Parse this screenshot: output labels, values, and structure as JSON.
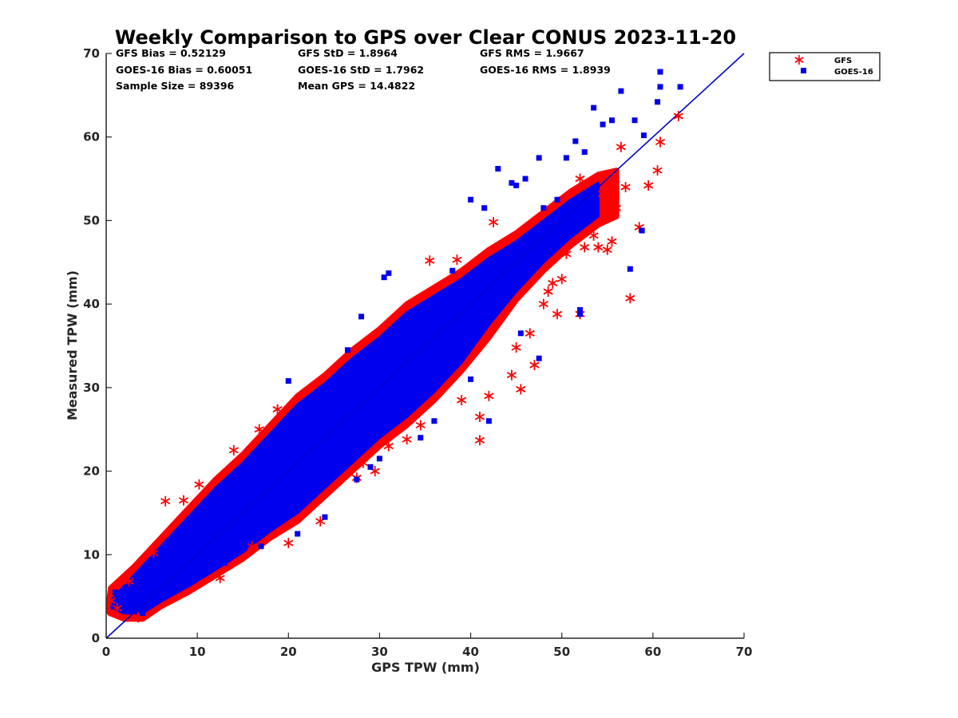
{
  "chart_data": {
    "type": "scatter",
    "title": "Weekly Comparison to GPS over Clear CONUS 2023-11-20",
    "xlabel": "GPS TPW (mm)",
    "ylabel": "Measured TPW (mm)",
    "xlim": [
      0,
      70
    ],
    "ylim": [
      0,
      70
    ],
    "xticks": [
      "0",
      "10",
      "20",
      "30",
      "40",
      "50",
      "60",
      "70"
    ],
    "yticks": [
      "0",
      "10",
      "20",
      "30",
      "40",
      "50",
      "60",
      "70"
    ],
    "grid": false,
    "legend_placement": "outside-top-right",
    "stats": {
      "row1": [
        "GFS Bias = 0.52129",
        "GFS StD = 1.8964",
        "GFS RMS = 1.9667"
      ],
      "row2": [
        "GOES-16 Bias = 0.60051",
        "GOES-16 StD = 1.7962",
        "GOES-16 RMS = 1.8939"
      ],
      "row3": [
        "Sample Size = 89396",
        "Mean GPS = 14.4822"
      ]
    },
    "reference_line": {
      "from": [
        0,
        0
      ],
      "to": [
        70,
        70
      ],
      "color": "#0000cc"
    },
    "series": [
      {
        "name": "GFS",
        "marker": "asterisk",
        "color": "#ff0000",
        "points": [
          [
            0.5,
            4.5
          ],
          [
            1.2,
            3.6
          ],
          [
            2.5,
            6.8
          ],
          [
            3.5,
            2.5
          ],
          [
            5.2,
            10.2
          ],
          [
            6.5,
            16.4
          ],
          [
            8.5,
            16.5
          ],
          [
            10.2,
            18.4
          ],
          [
            14,
            22.5
          ],
          [
            16.8,
            25
          ],
          [
            18.8,
            27.4
          ],
          [
            12.5,
            7.2
          ],
          [
            16,
            11
          ],
          [
            20,
            11.4
          ],
          [
            23.5,
            14
          ],
          [
            27.5,
            19.2
          ],
          [
            28.2,
            21
          ],
          [
            29.5,
            20
          ],
          [
            31,
            23
          ],
          [
            33,
            23.8
          ],
          [
            35.5,
            45.2
          ],
          [
            38.5,
            45.3
          ],
          [
            34.5,
            25.5
          ],
          [
            39,
            28.5
          ],
          [
            41,
            23.7
          ],
          [
            41,
            26.5
          ],
          [
            42,
            29
          ],
          [
            42.5,
            49.8
          ],
          [
            44.5,
            31.5
          ],
          [
            45,
            34.8
          ],
          [
            45.5,
            29.8
          ],
          [
            47,
            32.7
          ],
          [
            46.5,
            36.5
          ],
          [
            48,
            40
          ],
          [
            48.5,
            41.5
          ],
          [
            49,
            42.5
          ],
          [
            49.5,
            38.8
          ],
          [
            50,
            43
          ],
          [
            52,
            38.8
          ],
          [
            52.5,
            46.8
          ],
          [
            53.5,
            48.2
          ],
          [
            54,
            46.8
          ],
          [
            55,
            46.5
          ],
          [
            55.5,
            47.5
          ],
          [
            56,
            51.5
          ],
          [
            57.5,
            40.7
          ],
          [
            58.5,
            49.2
          ],
          [
            57,
            54
          ],
          [
            59.5,
            54.2
          ],
          [
            60.5,
            56
          ],
          [
            60.8,
            59.4
          ],
          [
            62.8,
            62.5
          ],
          [
            56.5,
            58.8
          ],
          [
            52,
            55
          ],
          [
            54.5,
            53.2
          ],
          [
            50.5,
            46
          ]
        ]
      },
      {
        "name": "GOES-16",
        "marker": "square",
        "color": "#0000ee",
        "points": [
          [
            1,
            5.5
          ],
          [
            2,
            3.2
          ],
          [
            3,
            4.5
          ],
          [
            4,
            7
          ],
          [
            6,
            8.5
          ],
          [
            9,
            13
          ],
          [
            12,
            16
          ],
          [
            15,
            20.5
          ],
          [
            18,
            23
          ],
          [
            21,
            27.2
          ],
          [
            20,
            30.8
          ],
          [
            26.5,
            34.5
          ],
          [
            28,
            38.5
          ],
          [
            31,
            43.7
          ],
          [
            30.5,
            43.2
          ],
          [
            33.5,
            37.5
          ],
          [
            35,
            39.5
          ],
          [
            38,
            44
          ],
          [
            40,
            52.5
          ],
          [
            41.5,
            51.5
          ],
          [
            43,
            56.2
          ],
          [
            44.5,
            54.5
          ],
          [
            45,
            54.2
          ],
          [
            46,
            55
          ],
          [
            47.5,
            57.5
          ],
          [
            48,
            51.5
          ],
          [
            49.5,
            52.5
          ],
          [
            50.5,
            57.5
          ],
          [
            51.5,
            59.5
          ],
          [
            52.5,
            58.2
          ],
          [
            53.5,
            63.5
          ],
          [
            54.5,
            61.5
          ],
          [
            55.5,
            62
          ],
          [
            56.5,
            65.5
          ],
          [
            58,
            62
          ],
          [
            59,
            60.2
          ],
          [
            60.5,
            64.2
          ],
          [
            60.8,
            66
          ],
          [
            60.8,
            67.8
          ],
          [
            63,
            66
          ],
          [
            52,
            38.8
          ],
          [
            52,
            39.3
          ],
          [
            57.5,
            44.2
          ],
          [
            58.8,
            48.8
          ],
          [
            45.5,
            36.5
          ],
          [
            47.5,
            33.5
          ],
          [
            42,
            26
          ],
          [
            38,
            33.5
          ],
          [
            34.5,
            24
          ],
          [
            30,
            21.5
          ],
          [
            27.5,
            19
          ],
          [
            24,
            14.5
          ],
          [
            21,
            12.5
          ],
          [
            17,
            11
          ],
          [
            13,
            9
          ],
          [
            9,
            6.5
          ],
          [
            6,
            5
          ],
          [
            4,
            3
          ],
          [
            29,
            20.5
          ],
          [
            36,
            26
          ],
          [
            40,
            31
          ]
        ]
      }
    ]
  }
}
